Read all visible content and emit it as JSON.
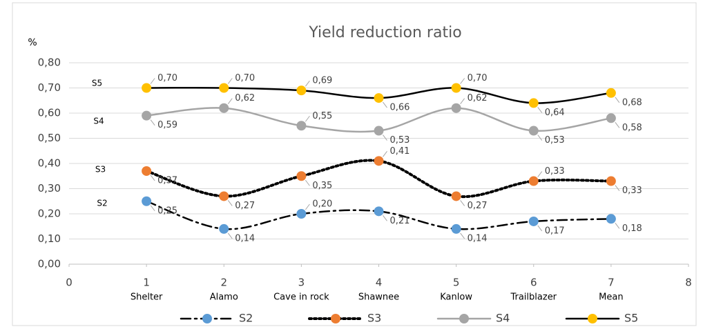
{
  "chart_data": {
    "type": "line",
    "title": "Yield reduction ratio",
    "y_label": "%",
    "x": [
      1,
      2,
      3,
      4,
      5,
      6,
      7
    ],
    "categories": [
      "Shelter",
      "Alamo",
      "Cave in rock",
      "Shawnee",
      "Kanlow",
      "Trailblazer",
      "Mean"
    ],
    "xlim": [
      0,
      8
    ],
    "xticks": [
      0,
      1,
      2,
      3,
      4,
      5,
      6,
      7,
      8
    ],
    "ylim": [
      0,
      0.8
    ],
    "yticks": [
      {
        "value": 0,
        "label": "0,00"
      },
      {
        "value": 0.1,
        "label": "0,10"
      },
      {
        "value": 0.2,
        "label": "0,20"
      },
      {
        "value": 0.3,
        "label": "0,30"
      },
      {
        "value": 0.4,
        "label": "0,40"
      },
      {
        "value": 0.5,
        "label": "0,50"
      },
      {
        "value": 0.6,
        "label": "0,60"
      },
      {
        "value": 0.7,
        "label": "0,70"
      },
      {
        "value": 0.8,
        "label": "0,80"
      }
    ],
    "grid": true,
    "smooth": true,
    "legend": "bottom",
    "series": [
      {
        "name": "S2",
        "color": "#5b9bd5",
        "line_color": "#000000",
        "line_style": "dash-dot",
        "values": [
          0.25,
          0.14,
          0.2,
          0.21,
          0.14,
          0.17,
          0.18
        ],
        "value_labels": [
          "0,25",
          "0,14",
          "0,20",
          "0,21",
          "0,14",
          "0,17",
          "0,18"
        ]
      },
      {
        "name": "S3",
        "color": "#ed7d31",
        "line_color": "#000000",
        "line_style": "dotted",
        "values": [
          0.37,
          0.27,
          0.35,
          0.41,
          0.27,
          0.33,
          0.33
        ],
        "value_labels": [
          "0,37",
          "0,27",
          "0,35",
          "0,41",
          "0,27",
          "0,33",
          "0,33"
        ]
      },
      {
        "name": "S4",
        "color": "#a5a5a5",
        "line_color": "#a5a5a5",
        "line_style": "solid",
        "values": [
          0.59,
          0.62,
          0.55,
          0.53,
          0.62,
          0.53,
          0.58
        ],
        "value_labels": [
          "0,59",
          "0,62",
          "0,55",
          "0,53",
          "0,62",
          "0,53",
          "0,58"
        ]
      },
      {
        "name": "S5",
        "color": "#ffc000",
        "line_color": "#000000",
        "line_style": "solid",
        "values": [
          0.7,
          0.7,
          0.69,
          0.66,
          0.7,
          0.64,
          0.68
        ],
        "value_labels": [
          "0,70",
          "0,70",
          "0,69",
          "0,66",
          "0,70",
          "0,64",
          "0,68"
        ]
      }
    ]
  }
}
